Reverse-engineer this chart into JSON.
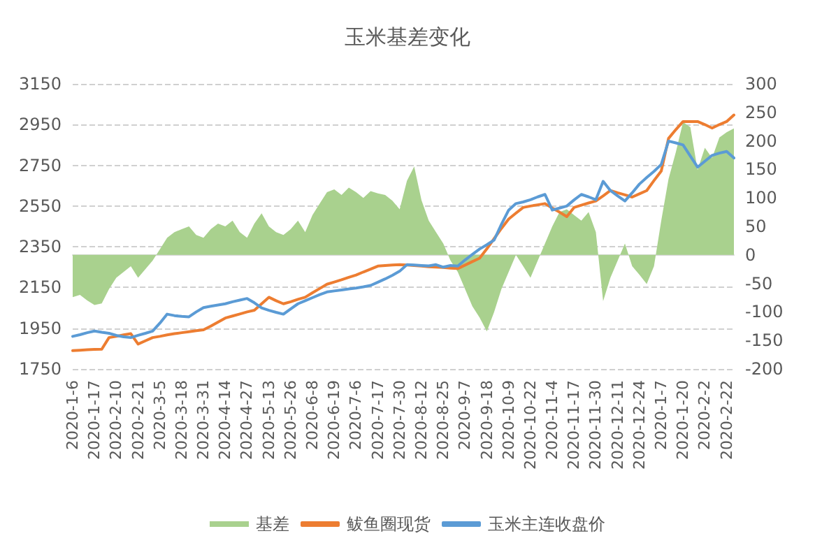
{
  "chart_data": {
    "type": "line",
    "title": "玉米基差变化",
    "categories": [
      "2020-1-6",
      null,
      null,
      "2020-1-17",
      null,
      null,
      "2020-2-10",
      null,
      null,
      "2020-2-21",
      null,
      null,
      "2020-3-5",
      null,
      null,
      "2020-3-18",
      null,
      null,
      "2020-3-31",
      null,
      null,
      "2020-4-14",
      null,
      null,
      "2020-4-27",
      null,
      null,
      "2020-5-13",
      null,
      null,
      "2020-5-26",
      null,
      null,
      "2020-6-8",
      null,
      null,
      "2020-6-19",
      null,
      null,
      "2020-7-6",
      null,
      null,
      "2020-7-17",
      null,
      null,
      "2020-7-30",
      null,
      null,
      "2020-8-12",
      null,
      null,
      "2020-8-25",
      null,
      null,
      "2020-9-7",
      null,
      null,
      "2020-9-18",
      null,
      null,
      "2020-10-9",
      null,
      null,
      "2020-10-22",
      null,
      null,
      "2020-11-4",
      null,
      null,
      "2020-11-17",
      null,
      null,
      "2020-11-30",
      null,
      null,
      "2020-12-11",
      null,
      null,
      "2020-12-24",
      null,
      null,
      "2020-1-7",
      null,
      null,
      "2020-1-20",
      null,
      null,
      "2020-2-2",
      null,
      null,
      "2020-2-22",
      null
    ],
    "series": [
      {
        "name": "基差",
        "type": "area",
        "axis": "y2",
        "color": "#a9d18e",
        "values": [
          -74,
          -70,
          -80,
          -88,
          -85,
          -60,
          -40,
          -30,
          -20,
          -40,
          -25,
          -10,
          10,
          30,
          40,
          45,
          50,
          35,
          30,
          45,
          55,
          50,
          60,
          40,
          30,
          55,
          73,
          50,
          40,
          35,
          45,
          60,
          40,
          70,
          90,
          110,
          115,
          105,
          118,
          110,
          100,
          112,
          108,
          105,
          95,
          80,
          130,
          155,
          96,
          60,
          40,
          20,
          -10,
          -30,
          -60,
          -90,
          -110,
          -134,
          -100,
          -60,
          -30,
          0,
          -20,
          -40,
          -10,
          20,
          50,
          75,
          80,
          70,
          60,
          75,
          40,
          -81,
          -40,
          -10,
          20,
          -20,
          -35,
          -51,
          -20,
          60,
          133,
          180,
          233,
          224,
          149,
          188,
          170,
          206,
          215,
          222
        ]
      },
      {
        "name": "鲅鱼圈现货",
        "color": "#ed7d31",
        "values": [
          1840,
          1842,
          1844,
          1846,
          1847,
          1904,
          1910,
          1917,
          1923,
          1872,
          1888,
          1904,
          1910,
          1917,
          1923,
          1928,
          1933,
          1938,
          1942,
          1960,
          1980,
          2000,
          2010,
          2020,
          2030,
          2038,
          2070,
          2102,
          2085,
          2070,
          2080,
          2092,
          2102,
          2124,
          2145,
          2166,
          2177,
          2188,
          2200,
          2211,
          2226,
          2240,
          2255,
          2258,
          2260,
          2262,
          2260,
          2258,
          2255,
          2252,
          2250,
          2248,
          2245,
          2243,
          2260,
          2277,
          2294,
          2340,
          2390,
          2440,
          2486,
          2515,
          2543,
          2550,
          2556,
          2562,
          2540,
          2520,
          2498,
          2543,
          2554,
          2565,
          2575,
          2600,
          2626,
          2615,
          2605,
          2594,
          2610,
          2626,
          2675,
          2722,
          2882,
          2925,
          2965,
          2965,
          2965,
          2950,
          2933,
          2950,
          2965,
          2997
        ]
      },
      {
        "name": "玉米主连收盘价",
        "color": "#5b9bd5",
        "values": [
          1910,
          1918,
          1928,
          1936,
          1930,
          1925,
          1915,
          1908,
          1904,
          1915,
          1925,
          1936,
          1975,
          2019,
          2012,
          2008,
          2006,
          2030,
          2051,
          2058,
          2064,
          2070,
          2080,
          2088,
          2096,
          2075,
          2050,
          2038,
          2028,
          2019,
          2045,
          2070,
          2085,
          2100,
          2115,
          2128,
          2133,
          2138,
          2143,
          2147,
          2153,
          2160,
          2176,
          2192,
          2210,
          2230,
          2262,
          2260,
          2258,
          2256,
          2262,
          2250,
          2258,
          2255,
          2285,
          2312,
          2339,
          2360,
          2383,
          2460,
          2530,
          2562,
          2570,
          2581,
          2595,
          2607,
          2530,
          2540,
          2550,
          2580,
          2607,
          2595,
          2581,
          2671,
          2626,
          2600,
          2575,
          2615,
          2658,
          2690,
          2720,
          2754,
          2869,
          2860,
          2850,
          2795,
          2741,
          2770,
          2799,
          2810,
          2818,
          2786
        ]
      }
    ],
    "ylim": [
      1750,
      3150
    ],
    "yticks": [
      1750,
      1950,
      2150,
      2350,
      2550,
      2750,
      2950,
      3150
    ],
    "y2lim": [
      -200,
      300
    ],
    "y2ticks": [
      -200,
      -150,
      -100,
      -50,
      0,
      50,
      100,
      150,
      200,
      250,
      300
    ],
    "grid": "y",
    "legend": "bottom",
    "marker": "none",
    "line_style": "solid"
  }
}
